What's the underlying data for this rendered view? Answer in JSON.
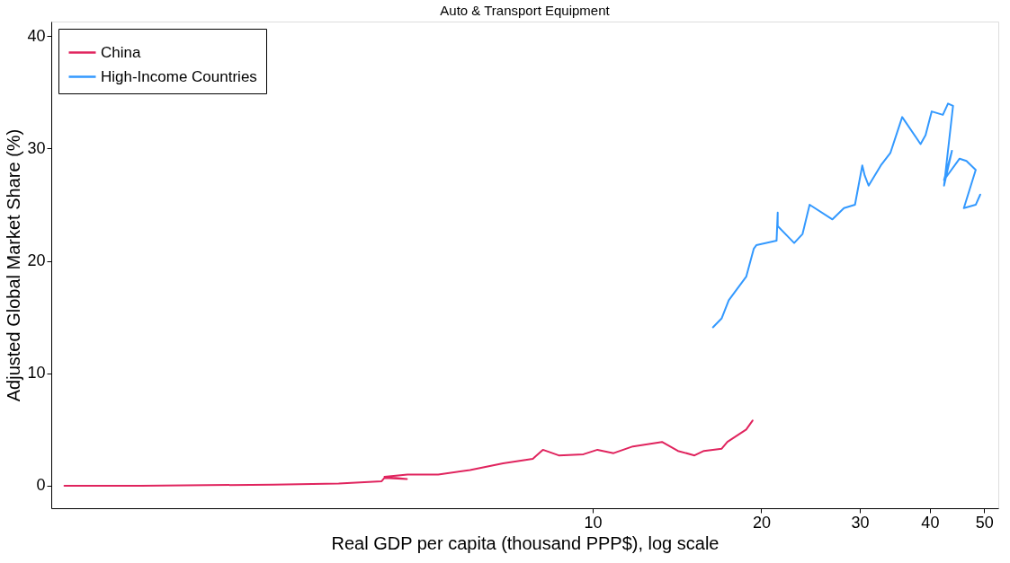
{
  "chart_data": {
    "type": "line",
    "title": "Auto & Transport Equipment",
    "xlabel": "Real GDP per capita (thousand PPP$), log scale",
    "ylabel": "Adjusted Global Market Share (%)",
    "log": "x",
    "xlim": [
      1.08,
      53
    ],
    "xticks": [
      10,
      20,
      30,
      40,
      50
    ],
    "ylim": [
      -2,
      41.3
    ],
    "yticks": [
      0,
      10,
      20,
      30,
      40
    ],
    "grid": false,
    "legend": "top left",
    "series": [
      {
        "name": "China",
        "color": "#e0245e",
        "x": [
          1.14,
          1.56,
          2.69,
          3.52,
          4.2,
          4.25,
          4.66,
          4.25,
          4.67,
          5.3,
          6.04,
          6.92,
          7.82,
          8.15,
          8.7,
          9.63,
          10.2,
          10.9,
          11.8,
          13.3,
          14.2,
          15.2,
          15.8,
          17.0,
          17.4,
          18.8,
          19.3
        ],
        "values": [
          0,
          0,
          0.1,
          0.2,
          0.4,
          0.7,
          0.6,
          0.8,
          1.0,
          1.0,
          1.4,
          2.0,
          2.4,
          3.2,
          2.7,
          2.8,
          3.2,
          2.9,
          3.5,
          3.9,
          3.1,
          2.7,
          3.1,
          3.3,
          3.9,
          5.0,
          5.8
        ]
      },
      {
        "name": "High-Income Countries",
        "color": "#3399ff",
        "x": [
          16.4,
          17.0,
          17.5,
          18.8,
          19.4,
          19.6,
          21.3,
          21.4,
          21.4,
          22.9,
          23.7,
          24.4,
          26.8,
          28.1,
          29.4,
          30.3,
          30.6,
          31.1,
          32.7,
          34.0,
          35.7,
          38.5,
          39.3,
          40.3,
          42.2,
          43.1,
          44.0,
          42.4,
          43.8,
          42.4,
          45.2,
          46.5,
          48.3,
          46.0,
          48.3,
          49.2
        ],
        "values": [
          14.1,
          14.9,
          16.5,
          18.6,
          21.1,
          21.4,
          21.8,
          24.3,
          23.1,
          21.6,
          22.4,
          25.0,
          23.7,
          24.7,
          25.0,
          28.5,
          27.6,
          26.7,
          28.5,
          29.6,
          32.8,
          30.4,
          31.2,
          33.3,
          33.0,
          34.0,
          33.8,
          26.7,
          29.8,
          27.2,
          29.1,
          28.9,
          28.1,
          24.7,
          25.0,
          25.9
        ]
      }
    ]
  }
}
